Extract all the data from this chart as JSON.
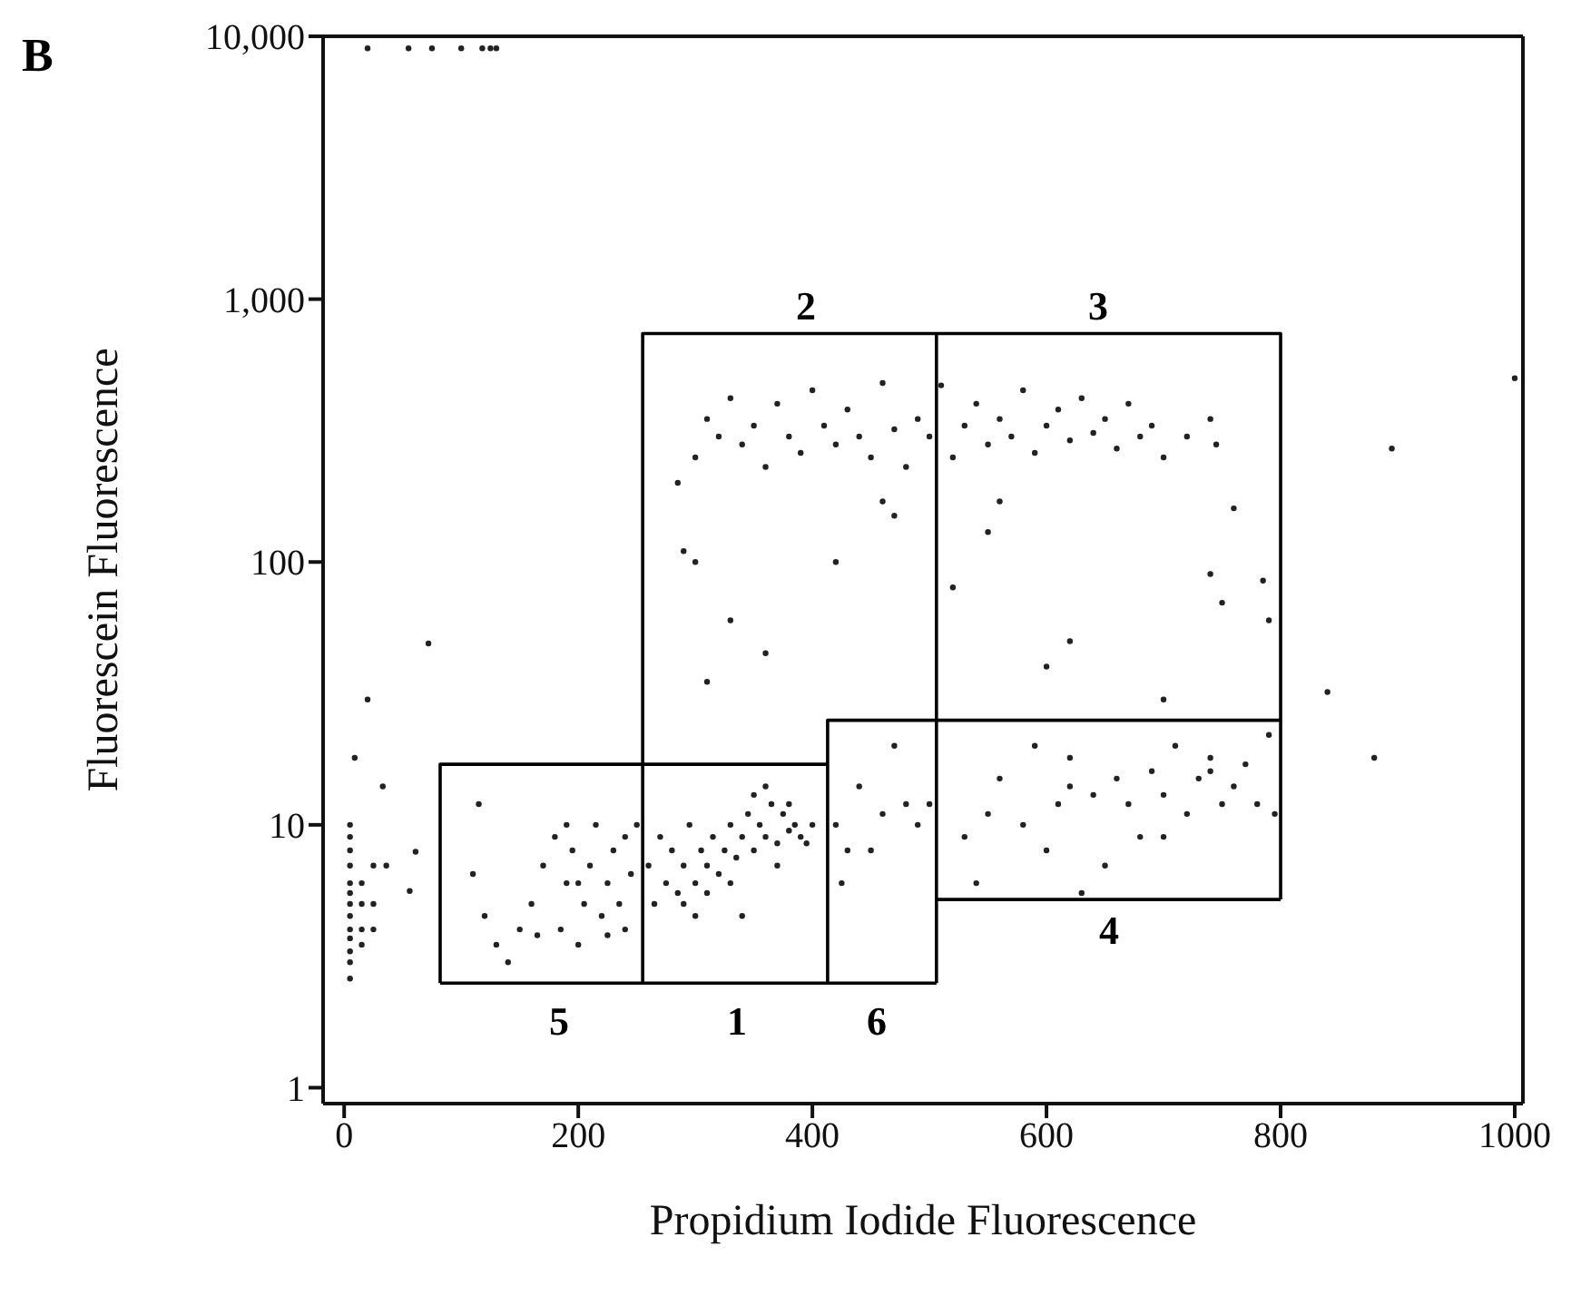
{
  "chart_data": {
    "type": "scatter",
    "xlabel": "Propidium Iodide Fluorescence",
    "ylabel": "Fluorescein Fluorescence",
    "annotations": [
      "B",
      "2",
      "3",
      "5",
      "1",
      "6",
      "4"
    ],
    "log": "y",
    "grid": false,
    "legend": false,
    "xlim": [
      -18,
      1007
    ],
    "xticks": [
      0,
      200,
      400,
      600,
      800,
      1000
    ],
    "ylim": [
      0.87,
      10000
    ],
    "yticks": [
      1,
      10,
      100,
      {
        "value": 1000,
        "label": "1,000"
      },
      {
        "value": 10000,
        "label": "10,000"
      }
    ],
    "series": [
      {
        "color": "#222222",
        "marker": "circle",
        "x": [
          20,
          55,
          75,
          100,
          118,
          125,
          130,
          5,
          5,
          5,
          5,
          5,
          5,
          5,
          5,
          5,
          5,
          5,
          5,
          5,
          15,
          15,
          15,
          15,
          25,
          25,
          25,
          20,
          72,
          9,
          33,
          61,
          56,
          36,
          110,
          120,
          130,
          140,
          150,
          160,
          170,
          180,
          185,
          190,
          195,
          200,
          205,
          210,
          215,
          220,
          225,
          230,
          235,
          240,
          245,
          250,
          115,
          200,
          190,
          165,
          225,
          240,
          260,
          265,
          270,
          275,
          280,
          285,
          290,
          295,
          300,
          305,
          310,
          315,
          320,
          325,
          330,
          335,
          340,
          345,
          350,
          355,
          360,
          365,
          370,
          375,
          380,
          385,
          390,
          395,
          400,
          300,
          290,
          340,
          350,
          360,
          330,
          310,
          370,
          380,
          420,
          430,
          440,
          460,
          470,
          480,
          490,
          500,
          425,
          450,
          530,
          540,
          550,
          560,
          580,
          590,
          600,
          610,
          620,
          630,
          640,
          650,
          660,
          670,
          680,
          690,
          700,
          710,
          720,
          730,
          740,
          750,
          760,
          770,
          780,
          790,
          795,
          620,
          700,
          740,
          285,
          300,
          310,
          320,
          330,
          340,
          350,
          360,
          370,
          380,
          390,
          400,
          410,
          420,
          430,
          440,
          450,
          460,
          470,
          480,
          490,
          500,
          510,
          520,
          530,
          540,
          550,
          560,
          570,
          580,
          590,
          600,
          610,
          620,
          630,
          640,
          650,
          660,
          670,
          680,
          690,
          700,
          720,
          740,
          745,
          290,
          300,
          310,
          330,
          360,
          420,
          460,
          470,
          520,
          550,
          560,
          600,
          620,
          700,
          740,
          750,
          760,
          785,
          790,
          840,
          880,
          895,
          1000
        ],
        "values": [
          9000,
          9000,
          9000,
          9000,
          9000,
          9000,
          9000,
          2.6,
          3,
          3.3,
          3.7,
          4,
          4.5,
          5,
          5.5,
          6,
          7,
          8,
          9,
          10,
          4,
          5,
          6,
          3.5,
          7,
          5,
          4,
          30,
          49,
          18,
          14,
          7.9,
          5.6,
          7,
          6.5,
          4.5,
          3.5,
          3,
          4,
          5,
          7,
          9,
          4,
          6,
          8,
          3.5,
          5,
          7,
          10,
          4.5,
          6,
          8,
          5,
          9,
          6.5,
          10,
          12,
          6,
          10,
          3.8,
          3.8,
          4,
          7,
          5,
          9,
          6,
          8,
          5.5,
          7,
          10,
          6,
          8,
          7,
          9,
          6.5,
          8,
          10,
          7.5,
          9,
          11,
          8,
          10,
          9,
          12,
          8.5,
          11,
          9.5,
          10,
          9,
          8.5,
          10,
          4.5,
          5,
          4.5,
          13,
          14,
          6,
          5.5,
          7,
          12,
          10,
          8,
          14,
          11,
          20,
          12,
          10,
          12,
          6,
          8,
          9,
          6,
          11,
          15,
          10,
          20,
          8,
          12,
          14,
          5.5,
          13,
          7,
          15,
          12,
          9,
          16,
          13,
          20,
          11,
          15,
          18,
          12,
          14,
          17,
          12,
          22,
          11,
          18,
          9,
          16,
          200,
          250,
          350,
          300,
          420,
          280,
          330,
          230,
          400,
          300,
          260,
          450,
          330,
          280,
          380,
          300,
          250,
          480,
          320,
          230,
          350,
          300,
          470,
          250,
          330,
          400,
          280,
          350,
          300,
          450,
          260,
          330,
          380,
          290,
          420,
          310,
          350,
          270,
          400,
          300,
          330,
          250,
          300,
          350,
          280,
          110,
          100,
          35,
          60,
          45,
          100,
          170,
          150,
          80,
          130,
          170,
          40,
          50,
          30,
          90,
          70,
          160,
          85,
          60,
          32,
          18,
          270,
          500
        ]
      },
      {
        "type": "line",
        "color": "#000000",
        "marker": "none",
        "x": [
          82,
          506
        ],
        "values": [
          2.5,
          2.5
        ]
      },
      {
        "type": "line",
        "color": "#000000",
        "marker": "none",
        "x": [
          82,
          82,
          413
        ],
        "values": [
          2.5,
          17,
          17
        ]
      },
      {
        "type": "line",
        "color": "#000000",
        "marker": "none",
        "x": [
          255,
          255,
          800,
          800
        ],
        "values": [
          2.5,
          740,
          740,
          5.2
        ]
      },
      {
        "type": "line",
        "color": "#000000",
        "marker": "none",
        "x": [
          413,
          413,
          800
        ],
        "values": [
          2.5,
          25,
          25
        ]
      },
      {
        "type": "line",
        "color": "#000000",
        "marker": "none",
        "x": [
          506,
          506
        ],
        "values": [
          2.5,
          740
        ]
      },
      {
        "type": "line",
        "color": "#000000",
        "marker": "none",
        "x": [
          506,
          800
        ],
        "values": [
          5.2,
          5.2
        ]
      }
    ]
  }
}
